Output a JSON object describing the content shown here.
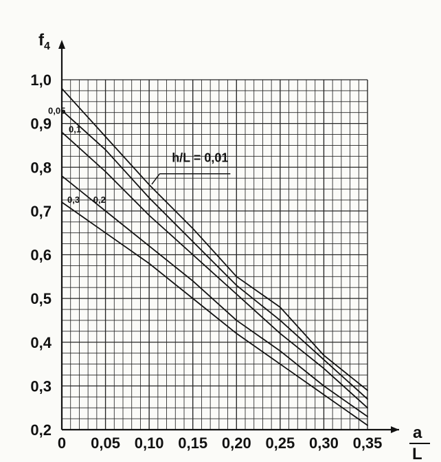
{
  "chart_data": {
    "type": "line",
    "xlabel": {
      "numerator": "a",
      "denominator": "L"
    },
    "ylabel": {
      "base": "f",
      "subscript": "4"
    },
    "xlim": [
      0,
      0.35
    ],
    "ylim": [
      0.2,
      1.0
    ],
    "grid": true,
    "x_ticks": [
      "0",
      "0,05",
      "0,10",
      "0,15",
      "0,20",
      "0,25",
      "0,30",
      "0,35"
    ],
    "y_ticks": [
      "0,2",
      "0,3",
      "0,4",
      "0,5",
      "0,6",
      "0,7",
      "0,8",
      "0,9",
      "1,0"
    ],
    "series": [
      {
        "name": "h/L = 0,01",
        "x": [
          0,
          0.05,
          0.1,
          0.15,
          0.2,
          0.25,
          0.3,
          0.35
        ],
        "y": [
          0.98,
          0.87,
          0.76,
          0.66,
          0.55,
          0.48,
          0.37,
          0.29
        ]
      },
      {
        "name": "0,05",
        "x": [
          0,
          0.05,
          0.1,
          0.15,
          0.2,
          0.25,
          0.3,
          0.35
        ],
        "y": [
          0.93,
          0.84,
          0.73,
          0.63,
          0.53,
          0.45,
          0.36,
          0.27
        ]
      },
      {
        "name": "0,1",
        "x": [
          0,
          0.05,
          0.1,
          0.15,
          0.2,
          0.25,
          0.3,
          0.35
        ],
        "y": [
          0.88,
          0.79,
          0.69,
          0.6,
          0.51,
          0.42,
          0.34,
          0.25
        ]
      },
      {
        "name": "0,2",
        "x": [
          0,
          0.05,
          0.1,
          0.15,
          0.2,
          0.25,
          0.3,
          0.35
        ],
        "y": [
          0.78,
          0.7,
          0.62,
          0.54,
          0.45,
          0.38,
          0.3,
          0.23
        ]
      },
      {
        "name": "0,3",
        "x": [
          0,
          0.05,
          0.1,
          0.15,
          0.2,
          0.25,
          0.3,
          0.35
        ],
        "y": [
          0.72,
          0.65,
          0.58,
          0.5,
          0.42,
          0.35,
          0.28,
          0.21
        ]
      }
    ]
  }
}
